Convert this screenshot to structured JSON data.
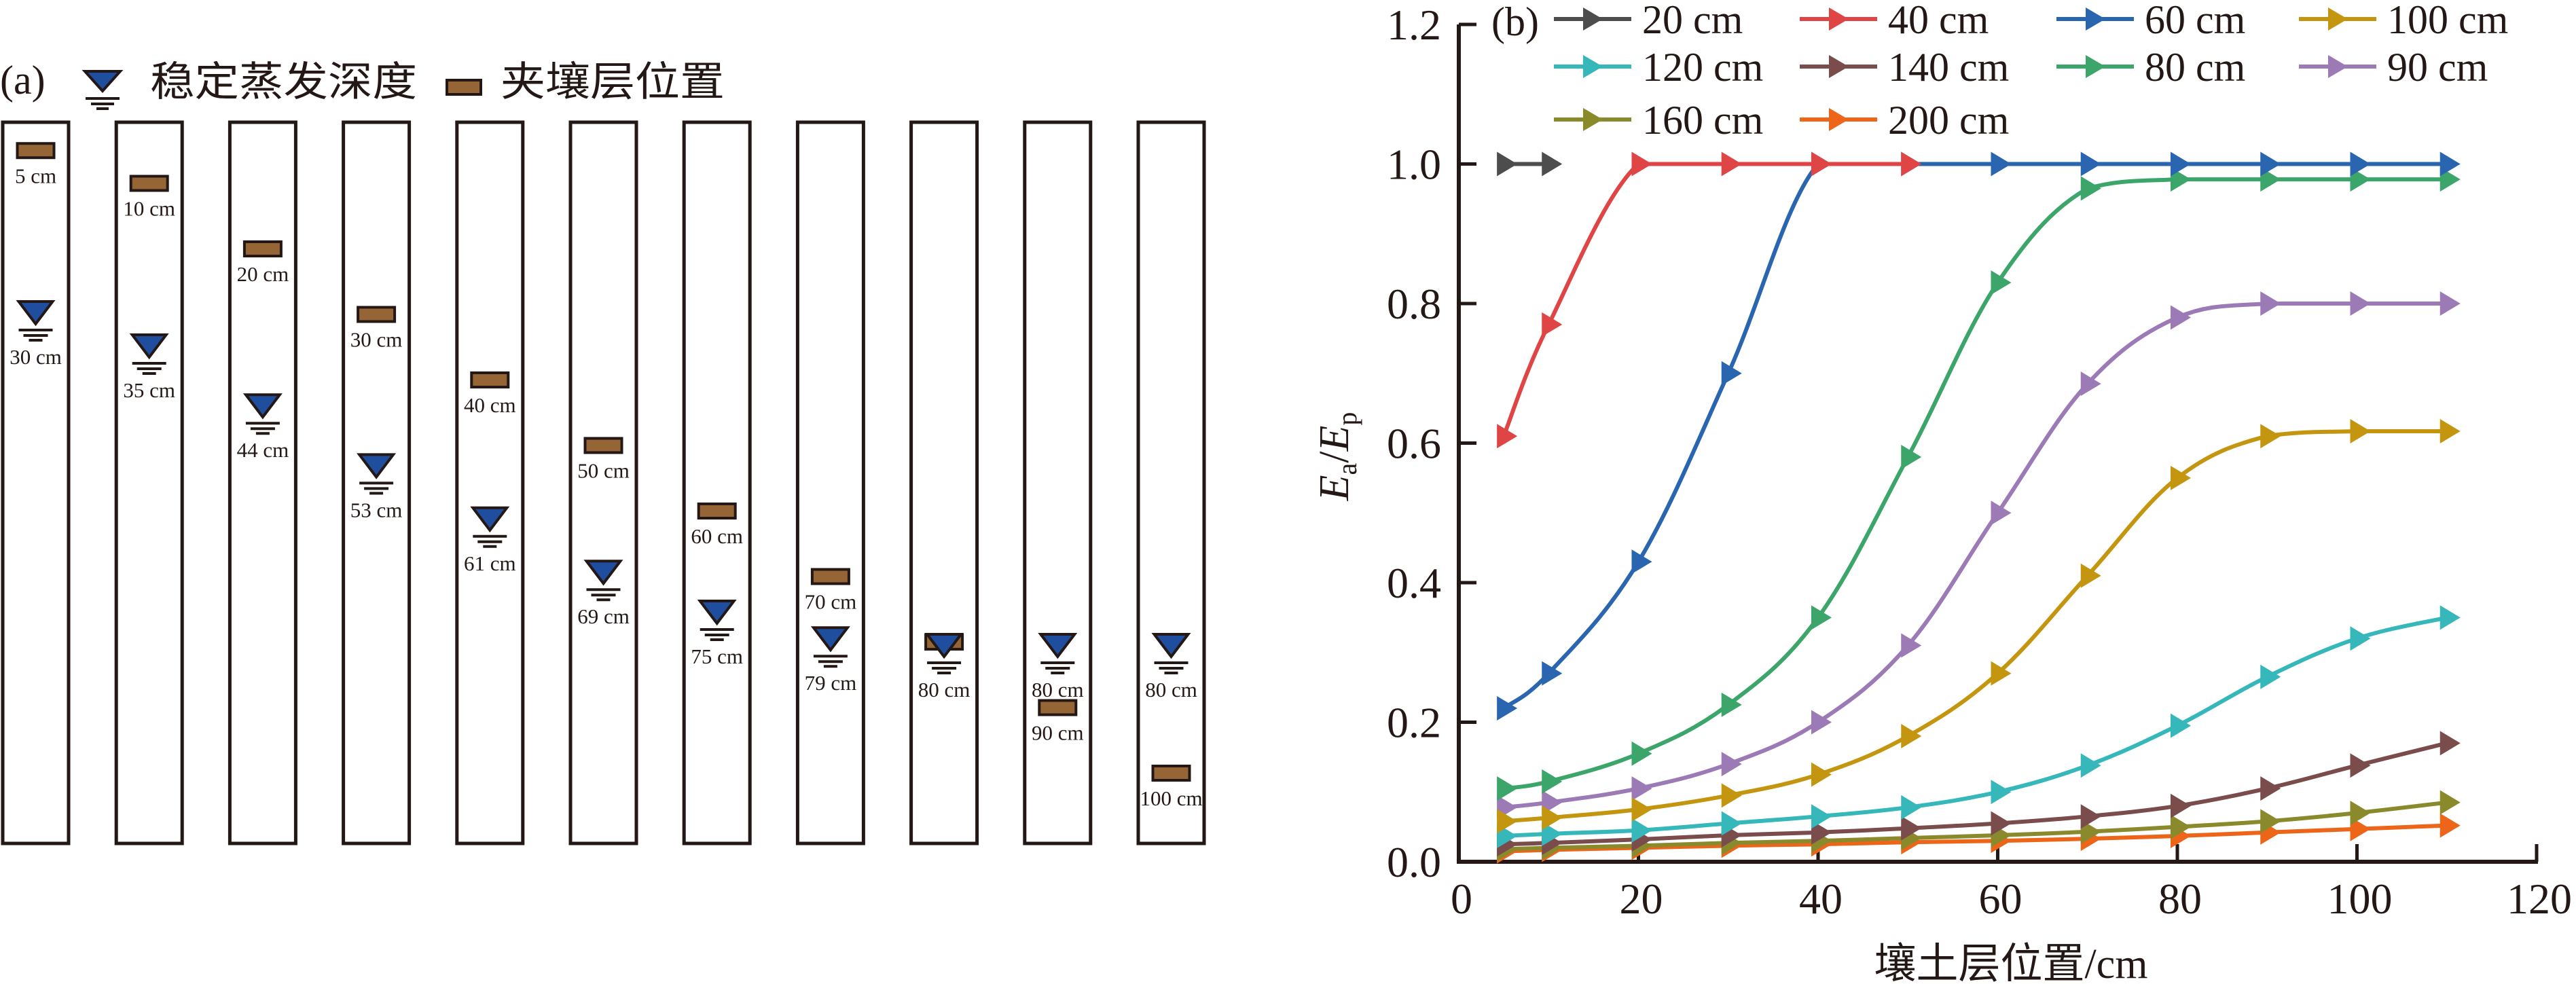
{
  "colors": {
    "ink": "#231815",
    "water_fill": "#1f4e9e",
    "layer_fill": "#956535"
  },
  "panel_a": {
    "panel_label": "(a)",
    "legend": {
      "water_label": "稳定蒸发深度",
      "layer_label": "夹壤层位置"
    },
    "columns": [
      {
        "layer_cm": 5,
        "layer_label": "5 cm",
        "water_cm": 30,
        "water_label": "30 cm"
      },
      {
        "layer_cm": 10,
        "layer_label": "10 cm",
        "water_cm": 35,
        "water_label": "35 cm"
      },
      {
        "layer_cm": 20,
        "layer_label": "20 cm",
        "water_cm": 44,
        "water_label": "44 cm"
      },
      {
        "layer_cm": 30,
        "layer_label": "30 cm",
        "water_cm": 53,
        "water_label": "53 cm"
      },
      {
        "layer_cm": 40,
        "layer_label": "40 cm",
        "water_cm": 61,
        "water_label": "61 cm"
      },
      {
        "layer_cm": 50,
        "layer_label": "50 cm",
        "water_cm": 69,
        "water_label": "69 cm"
      },
      {
        "layer_cm": 60,
        "layer_label": "60 cm",
        "water_cm": 75,
        "water_label": "75 cm"
      },
      {
        "layer_cm": 70,
        "layer_label": "70 cm",
        "water_cm": 79,
        "water_label": "79 cm"
      },
      {
        "layer_cm": 80,
        "layer_label": "",
        "water_cm": 80,
        "water_label": "80 cm"
      },
      {
        "layer_cm": 90,
        "layer_label": "90 cm",
        "water_cm": 80,
        "water_label": "80 cm"
      },
      {
        "layer_cm": 100,
        "layer_label": "100 cm",
        "water_cm": 80,
        "water_label": "80 cm"
      }
    ]
  },
  "chart_data": {
    "type": "line",
    "panel_label": "(b)",
    "title": "",
    "xlabel": "壤土层位置/cm",
    "ylabel": {
      "main": "E",
      "sub_a": "a",
      "slash": "/",
      "main2": "E",
      "sub_p": "p"
    },
    "xlim": [
      0,
      120
    ],
    "ylim": [
      0.0,
      1.2
    ],
    "x_ticks": [
      0,
      20,
      40,
      60,
      80,
      100,
      120
    ],
    "x_tick_labels": [
      "0",
      "20",
      "40",
      "60",
      "80",
      "100",
      "120"
    ],
    "y_ticks": [
      0.0,
      0.2,
      0.4,
      0.6,
      0.8,
      1.0,
      1.2
    ],
    "y_tick_labels": [
      "0.0",
      "0.2",
      "0.4",
      "0.6",
      "0.8",
      "1.0",
      "1.2"
    ],
    "grid": false,
    "legend_position": "top",
    "marker": "triangle-right",
    "series": [
      {
        "name": "20 cm",
        "color": "#4d4d4d",
        "x": [
          5,
          10
        ],
        "y": [
          1.0,
          1.0
        ]
      },
      {
        "name": "40 cm",
        "color": "#e04545",
        "x": [
          5,
          10,
          20,
          30,
          40,
          50
        ],
        "y": [
          0.61,
          0.77,
          1.0,
          1.0,
          1.0,
          1.0
        ]
      },
      {
        "name": "60 cm",
        "color": "#2a66b0",
        "x": [
          5,
          10,
          20,
          30,
          40,
          50,
          60,
          70,
          80,
          90,
          100,
          110
        ],
        "y": [
          0.22,
          0.27,
          0.43,
          0.7,
          1.0,
          1.0,
          1.0,
          1.0,
          1.0,
          1.0,
          1.0,
          1.0
        ]
      },
      {
        "name": "100 cm",
        "color": "#c4960f",
        "x": [
          5,
          10,
          20,
          30,
          40,
          50,
          60,
          70,
          80,
          90,
          100,
          110
        ],
        "y": [
          0.058,
          0.063,
          0.075,
          0.095,
          0.125,
          0.18,
          0.27,
          0.41,
          0.55,
          0.61,
          0.617,
          0.617
        ]
      },
      {
        "name": "120 cm",
        "color": "#36b8bb",
        "x": [
          5,
          10,
          20,
          30,
          40,
          50,
          60,
          70,
          80,
          90,
          100,
          110
        ],
        "y": [
          0.037,
          0.04,
          0.045,
          0.055,
          0.065,
          0.078,
          0.1,
          0.138,
          0.195,
          0.265,
          0.32,
          0.35
        ]
      },
      {
        "name": "140 cm",
        "color": "#7a4c4c",
        "x": [
          5,
          10,
          20,
          30,
          40,
          50,
          60,
          70,
          80,
          90,
          100,
          110
        ],
        "y": [
          0.025,
          0.027,
          0.032,
          0.038,
          0.042,
          0.048,
          0.055,
          0.065,
          0.08,
          0.105,
          0.138,
          0.17
        ]
      },
      {
        "name": "80 cm",
        "color": "#3ca56a",
        "x": [
          5,
          10,
          20,
          30,
          40,
          50,
          60,
          70,
          80,
          90,
          100,
          110
        ],
        "y": [
          0.105,
          0.115,
          0.155,
          0.225,
          0.35,
          0.58,
          0.83,
          0.965,
          0.978,
          0.978,
          0.978,
          0.978
        ]
      },
      {
        "name": "90 cm",
        "color": "#9c7ab6",
        "x": [
          5,
          10,
          20,
          30,
          40,
          50,
          60,
          70,
          80,
          90,
          100,
          110
        ],
        "y": [
          0.078,
          0.085,
          0.105,
          0.14,
          0.2,
          0.31,
          0.5,
          0.685,
          0.78,
          0.8,
          0.8,
          0.8
        ]
      },
      {
        "name": "160 cm",
        "color": "#8a8a2c",
        "x": [
          5,
          10,
          20,
          30,
          40,
          50,
          60,
          70,
          80,
          90,
          100,
          110
        ],
        "y": [
          0.018,
          0.02,
          0.023,
          0.027,
          0.03,
          0.034,
          0.038,
          0.043,
          0.05,
          0.058,
          0.07,
          0.085
        ]
      },
      {
        "name": "200 cm",
        "color": "#ec6518",
        "x": [
          5,
          10,
          20,
          30,
          40,
          50,
          60,
          70,
          80,
          90,
          100,
          110
        ],
        "y": [
          0.015,
          0.017,
          0.02,
          0.023,
          0.025,
          0.028,
          0.03,
          0.033,
          0.037,
          0.042,
          0.047,
          0.052
        ]
      }
    ]
  }
}
